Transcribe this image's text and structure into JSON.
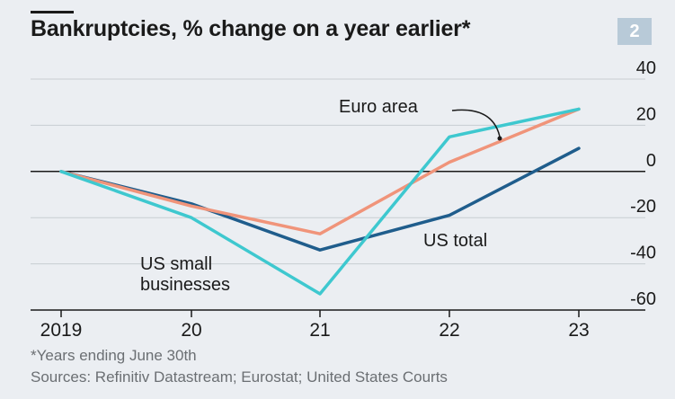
{
  "chart_data": {
    "type": "line",
    "title": "Bankruptcies, % change on a year earlier*",
    "badge": "2",
    "categories": [
      "2019",
      "20",
      "21",
      "22",
      "23"
    ],
    "x": [
      2019,
      2020,
      2021,
      2022,
      2023
    ],
    "ylim": [
      -60,
      40
    ],
    "yticks": [
      "40",
      "20",
      "0",
      "-20",
      "-40",
      "-60"
    ],
    "ytick_values": [
      40,
      20,
      0,
      -20,
      -40,
      -60
    ],
    "grid": true,
    "series": [
      {
        "name": "US total",
        "color": "#1f5d8c",
        "values": [
          0,
          -14,
          -34,
          -19,
          10
        ]
      },
      {
        "name": "Euro area",
        "color": "#f0947a",
        "values": [
          0,
          -15,
          -27,
          4,
          27
        ]
      },
      {
        "name": "US small businesses",
        "color": "#3ec8cf",
        "values": [
          0,
          -20,
          -53,
          15,
          27
        ]
      }
    ],
    "labels": {
      "us_total": "US total",
      "euro_area": "Euro area",
      "us_small_line1": "US small",
      "us_small_line2": "businesses"
    },
    "footnote": "*Years ending June 30th",
    "sources": "Sources: Refinitiv Datastream; Eurostat; United States Courts"
  }
}
